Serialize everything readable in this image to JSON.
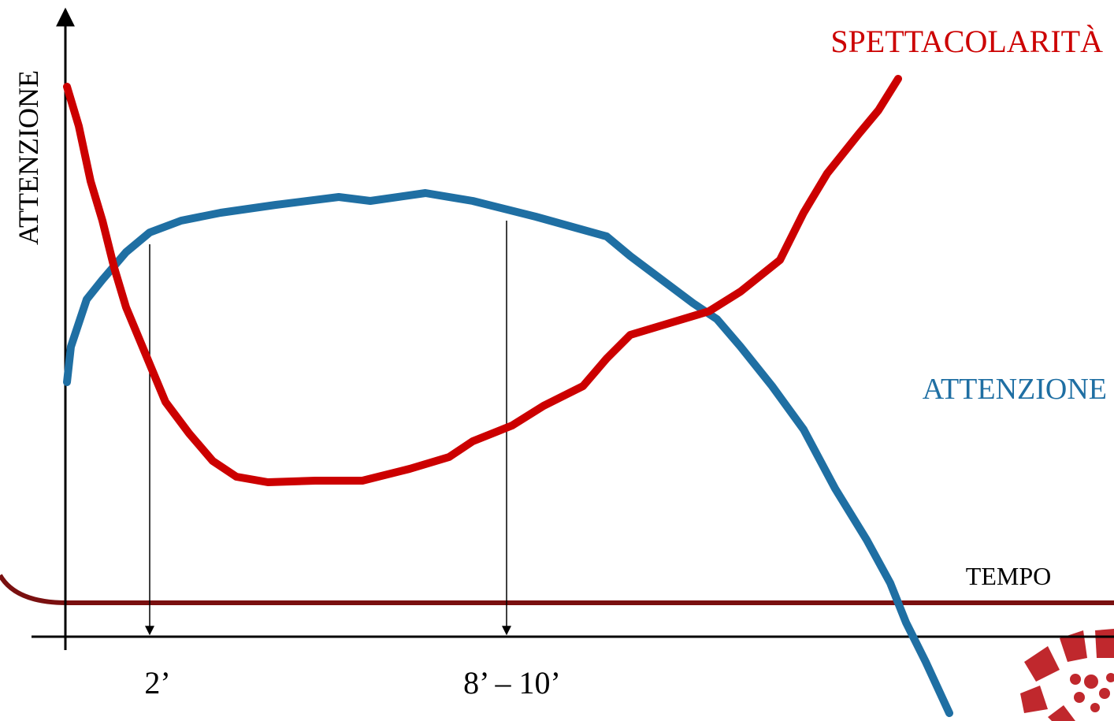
{
  "y_axis_label": "ATTENZIONE",
  "x_axis_label": "TEMPO",
  "curve_labels": {
    "spettacolarita": "SPETTACOLARITÀ",
    "attenzione": "ATTENZIONE"
  },
  "time_markers": [
    "2’",
    "8’ – 10’"
  ]
}
